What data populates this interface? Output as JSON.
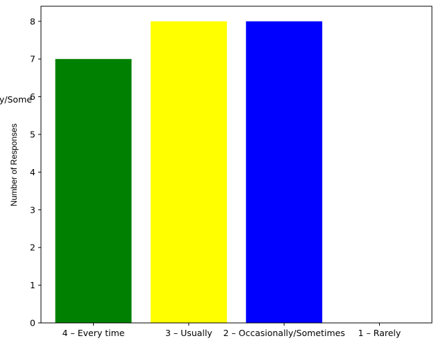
{
  "chart_data": {
    "type": "bar",
    "categories": [
      "4 – Every time",
      "3 – Usually",
      "2 – Occasionally/Sometimes",
      "1 – Rarely"
    ],
    "values": [
      7,
      8,
      8,
      0
    ],
    "colors": [
      "#008000",
      "#ffff00",
      "#0000ff",
      "#ff0000"
    ],
    "ylabel": "Number of Responses",
    "xlabel": "",
    "ylim": [
      0,
      8.4
    ],
    "yticks": [
      0,
      1,
      2,
      3,
      4,
      5,
      6,
      7,
      8
    ],
    "grid": false,
    "legend": "none",
    "stray_label": "y/Some"
  }
}
